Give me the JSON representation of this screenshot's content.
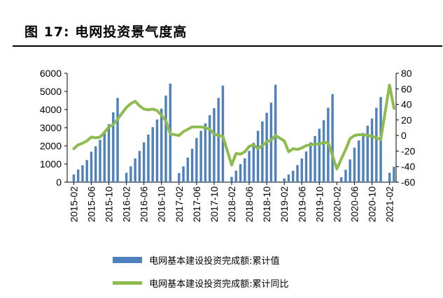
{
  "figure": {
    "title": "图 17: 电网投资景气度高"
  },
  "chart_data": {
    "type": "bar+line",
    "left_axis": {
      "ylim": [
        0,
        6000
      ],
      "ticks": [
        "0",
        "1000",
        "2000",
        "3000",
        "4000",
        "5000",
        "6000"
      ]
    },
    "right_axis": {
      "ylim": [
        -60,
        80
      ],
      "ticks": [
        "-60",
        "-40",
        "-20",
        "0",
        "20",
        "40",
        "60",
        "80"
      ]
    },
    "x_tick_labels": [
      "2015-02",
      "2015-06",
      "2015-10",
      "2016-02",
      "2016-06",
      "2016-10",
      "2017-02",
      "2017-06",
      "2017-10",
      "2018-02",
      "2018-06",
      "2018-10",
      "2019-02",
      "2019-06",
      "2019-10",
      "2020-02",
      "2020-06",
      "2020-10",
      "2021-02"
    ],
    "categories": [
      "2015-01",
      "2015-02",
      "2015-03",
      "2015-04",
      "2015-05",
      "2015-06",
      "2015-07",
      "2015-08",
      "2015-09",
      "2015-10",
      "2015-11",
      "2015-12",
      "2016-01",
      "2016-02",
      "2016-03",
      "2016-04",
      "2016-05",
      "2016-06",
      "2016-07",
      "2016-08",
      "2016-09",
      "2016-10",
      "2016-11",
      "2016-12",
      "2017-01",
      "2017-02",
      "2017-03",
      "2017-04",
      "2017-05",
      "2017-06",
      "2017-07",
      "2017-08",
      "2017-09",
      "2017-10",
      "2017-11",
      "2017-12",
      "2018-01",
      "2018-02",
      "2018-03",
      "2018-04",
      "2018-05",
      "2018-06",
      "2018-07",
      "2018-08",
      "2018-09",
      "2018-10",
      "2018-11",
      "2018-12",
      "2019-01",
      "2019-02",
      "2019-03",
      "2019-04",
      "2019-05",
      "2019-06",
      "2019-07",
      "2019-08",
      "2019-09",
      "2019-10",
      "2019-11",
      "2019-12",
      "2020-01",
      "2020-02",
      "2020-03",
      "2020-04",
      "2020-05",
      "2020-06",
      "2020-07",
      "2020-08",
      "2020-09",
      "2020-10",
      "2020-11",
      "2020-12",
      "2021-01",
      "2021-02",
      "2021-03"
    ],
    "series": [
      {
        "name": "电网基本建设投资完成额:累计值",
        "type": "bar",
        "axis": "left",
        "color": "#4f81bd",
        "values": [
          0,
          430,
          700,
          930,
          1220,
          1680,
          1980,
          2330,
          2770,
          3190,
          3850,
          4640,
          0,
          520,
          870,
          1310,
          1720,
          2200,
          2620,
          3030,
          3450,
          4050,
          4770,
          5430,
          0,
          500,
          870,
          1350,
          1840,
          2430,
          2830,
          3240,
          3690,
          4080,
          4640,
          5320,
          0,
          290,
          630,
          990,
          1310,
          1720,
          2170,
          2830,
          3350,
          3820,
          4380,
          5370,
          0,
          210,
          420,
          630,
          940,
          1300,
          1690,
          2190,
          2540,
          2940,
          3410,
          4100,
          4850,
          0,
          270,
          680,
          1250,
          1900,
          2300,
          2710,
          3110,
          3510,
          4100,
          4690,
          0,
          520,
          850
        ]
      },
      {
        "name": "电网基本建设投资完成额:累计同比",
        "type": "line",
        "axis": "right",
        "color": "#8ebb4f",
        "values": [
          null,
          -17,
          -12,
          -10,
          -7,
          -2,
          -3,
          -2,
          4,
          11,
          14,
          21,
          null,
          36,
          41,
          44,
          38,
          34,
          33,
          34,
          32,
          26,
          19,
          2,
          null,
          0,
          5,
          8,
          11,
          11,
          11,
          10,
          8,
          2,
          0,
          -1,
          null,
          -38,
          -23,
          -24,
          -21,
          -14,
          -12,
          -17,
          -13,
          -8,
          -6,
          0,
          null,
          -7,
          -21,
          -17,
          -18,
          -16,
          -13,
          -12,
          -11,
          -11,
          -9,
          -9,
          null,
          -43,
          -30,
          -18,
          -4,
          0,
          1,
          1,
          0,
          -1,
          -3,
          -5,
          null,
          65,
          35
        ]
      }
    ]
  },
  "legend": {
    "bar_label": "电网基本建设投资完成额:累计值",
    "line_label": "电网基本建设投资完成额:累计同比"
  }
}
